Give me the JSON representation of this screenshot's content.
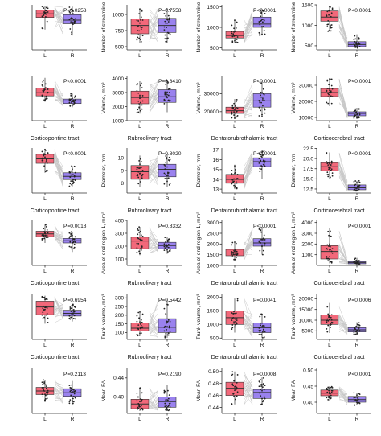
{
  "colors": {
    "L": "#f2687a",
    "R": "#9a82ee",
    "line": "#c8c8c8",
    "dot": "#222222",
    "axis": "#333333"
  },
  "chart_data": [
    {
      "type": "box",
      "title": "",
      "ylabel": "",
      "ylim": [
        0,
        1
      ],
      "yticks": [],
      "categories": [
        "L",
        "R"
      ],
      "boxes": [
        {
          "q1": 0.72,
          "median": 0.8,
          "q3": 0.88,
          "lo": 0.45,
          "hi": 0.98
        },
        {
          "q1": 0.58,
          "median": 0.66,
          "q3": 0.78,
          "lo": 0.32,
          "hi": 0.96
        }
      ],
      "pvalue": "P=0.0258"
    },
    {
      "type": "box",
      "title": "",
      "ylabel": "Number of streamline",
      "ylim": [
        450,
        1150
      ],
      "yticks": [
        "500",
        "750",
        "1000"
      ],
      "categories": [
        "L",
        "R"
      ],
      "boxes": [
        {
          "q1": 700,
          "median": 830,
          "q3": 930,
          "lo": 560,
          "hi": 1100
        },
        {
          "q1": 720,
          "median": 830,
          "q3": 940,
          "lo": 560,
          "hi": 1100
        }
      ],
      "pvalue": "P=0.7558"
    },
    {
      "type": "box",
      "title": "",
      "ylabel": "Number of streamline",
      "ylim": [
        450,
        1550
      ],
      "yticks": [
        "500",
        "1000",
        "1500"
      ],
      "categories": [
        "L",
        "R"
      ],
      "boxes": [
        {
          "q1": 740,
          "median": 800,
          "q3": 900,
          "lo": 620,
          "hi": 1200
        },
        {
          "q1": 1000,
          "median": 1080,
          "q3": 1250,
          "lo": 800,
          "hi": 1450
        }
      ],
      "pvalue": "P<0.0001"
    },
    {
      "type": "box",
      "title": "",
      "ylabel": "Number of streamline",
      "ylim": [
        400,
        1500
      ],
      "yticks": [
        "500",
        "1000",
        "1500"
      ],
      "categories": [
        "L",
        "R"
      ],
      "boxes": [
        {
          "q1": 1100,
          "median": 1200,
          "q3": 1350,
          "lo": 850,
          "hi": 1480
        },
        {
          "q1": 480,
          "median": 530,
          "q3": 600,
          "lo": 440,
          "hi": 780
        }
      ],
      "pvalue": "P<0.0001"
    },
    {
      "type": "box",
      "title": "Corticopontine tract",
      "ylabel": "",
      "ylim": [
        0,
        1
      ],
      "yticks": [],
      "categories": [
        "L",
        "R"
      ],
      "boxes": [
        {
          "q1": 0.55,
          "median": 0.62,
          "q3": 0.72,
          "lo": 0.42,
          "hi": 0.95
        },
        {
          "q1": 0.38,
          "median": 0.44,
          "q3": 0.48,
          "lo": 0.3,
          "hi": 0.6
        }
      ],
      "pvalue": "P<0.0001"
    },
    {
      "type": "box",
      "title": "Rubroolivary tract",
      "ylabel": "Volume, mm³",
      "ylim": [
        1000,
        4200
      ],
      "yticks": [
        "1000",
        "2000",
        "3000",
        "4000"
      ],
      "categories": [
        "L",
        "R"
      ],
      "boxes": [
        {
          "q1": 2200,
          "median": 2650,
          "q3": 3100,
          "lo": 1500,
          "hi": 3800
        },
        {
          "q1": 2300,
          "median": 2700,
          "q3": 3200,
          "lo": 1600,
          "hi": 3900
        }
      ],
      "pvalue": "P=0.8410"
    },
    {
      "type": "box",
      "title": "Dentatorubrothalamic tract",
      "ylabel": "Volume, mm³",
      "ylim": [
        15000,
        40000
      ],
      "yticks": [
        "20000",
        "30000"
      ],
      "categories": [
        "L",
        "R"
      ],
      "boxes": [
        {
          "q1": 19000,
          "median": 20500,
          "q3": 22500,
          "lo": 16000,
          "hi": 27000
        },
        {
          "q1": 22500,
          "median": 26000,
          "q3": 30000,
          "lo": 17000,
          "hi": 37000
        }
      ],
      "pvalue": "P<0.0001"
    },
    {
      "type": "box",
      "title": "Corticocerebral tract",
      "ylabel": "Volume, mm³",
      "ylim": [
        8000,
        36000
      ],
      "yticks": [
        "10000",
        "20000",
        "30000"
      ],
      "categories": [
        "L",
        "R"
      ],
      "boxes": [
        {
          "q1": 23000,
          "median": 25500,
          "q3": 28000,
          "lo": 17000,
          "hi": 34000
        },
        {
          "q1": 11000,
          "median": 12500,
          "q3": 13500,
          "lo": 9500,
          "hi": 16000
        }
      ],
      "pvalue": "P<0.0001"
    },
    {
      "type": "box",
      "title": "Corticopontine tract",
      "ylabel": "",
      "ylim": [
        0,
        1
      ],
      "yticks": [],
      "categories": [
        "L",
        "R"
      ],
      "boxes": [
        {
          "q1": 0.66,
          "median": 0.76,
          "q3": 0.86,
          "lo": 0.45,
          "hi": 0.97
        },
        {
          "q1": 0.3,
          "median": 0.37,
          "q3": 0.45,
          "lo": 0.15,
          "hi": 0.6
        }
      ],
      "pvalue": "P<0.0001"
    },
    {
      "type": "box",
      "title": "Rubroolivary tract",
      "ylabel": "Diameter, mm",
      "ylim": [
        7.2,
        10.8
      ],
      "yticks": [
        "8",
        "9",
        "10"
      ],
      "categories": [
        "L",
        "R"
      ],
      "boxes": [
        {
          "q1": 8.3,
          "median": 8.9,
          "q3": 9.4,
          "lo": 7.7,
          "hi": 10.2
        },
        {
          "q1": 8.5,
          "median": 9.1,
          "q3": 9.5,
          "lo": 7.7,
          "hi": 10.3
        }
      ],
      "pvalue": "P=0.8020"
    },
    {
      "type": "box",
      "title": "Dentatorubrothalamic tract",
      "ylabel": "Diameter, mm",
      "ylim": [
        12.6,
        17.2
      ],
      "yticks": [
        "13",
        "14",
        "15",
        "16",
        "17"
      ],
      "categories": [
        "L",
        "R"
      ],
      "boxes": [
        {
          "q1": 13.6,
          "median": 14.0,
          "q3": 14.5,
          "lo": 13.0,
          "hi": 15.5
        },
        {
          "q1": 15.3,
          "median": 15.8,
          "q3": 16.2,
          "lo": 14.0,
          "hi": 17.0
        }
      ],
      "pvalue": "P<0.0001"
    },
    {
      "type": "box",
      "title": "Corticocerebral tract",
      "ylabel": "Diameter, mm",
      "ylim": [
        11.5,
        22.6
      ],
      "yticks": [
        "12.5",
        "15.0",
        "17.5",
        "20.0",
        "22.5"
      ],
      "categories": [
        "L",
        "R"
      ],
      "boxes": [
        {
          "q1": 17.0,
          "median": 18.0,
          "q3": 19.0,
          "lo": 15.0,
          "hi": 21.5
        },
        {
          "q1": 12.3,
          "median": 12.8,
          "q3": 13.5,
          "lo": 12.0,
          "hi": 14.5
        }
      ],
      "pvalue": "P<0.0001"
    },
    {
      "type": "box",
      "title": "Corticopontine tract",
      "ylabel": "",
      "ylim": [
        0,
        1
      ],
      "yticks": [],
      "categories": [
        "L",
        "R"
      ],
      "boxes": [
        {
          "q1": 0.64,
          "median": 0.7,
          "q3": 0.76,
          "lo": 0.5,
          "hi": 0.92
        },
        {
          "q1": 0.5,
          "median": 0.55,
          "q3": 0.6,
          "lo": 0.3,
          "hi": 0.75
        }
      ],
      "pvalue": "P=0.0018"
    },
    {
      "type": "box",
      "title": "Rubroolivary tract",
      "ylabel": "Area of end region 1, mm²",
      "ylim": [
        50,
        400
      ],
      "yticks": [
        "100",
        "200",
        "300",
        "400"
      ],
      "categories": [
        "L",
        "R"
      ],
      "boxes": [
        {
          "q1": 180,
          "median": 240,
          "q3": 270,
          "lo": 130,
          "hi": 350
        },
        {
          "q1": 180,
          "median": 205,
          "q3": 230,
          "lo": 140,
          "hi": 270
        }
      ],
      "pvalue": "P=0.8332"
    },
    {
      "type": "box",
      "title": "Dentatorubrothalamic tract",
      "ylabel": "Area of end region 1, mm²",
      "ylim": [
        1000,
        3100
      ],
      "yticks": [
        "1000",
        "1500",
        "2000",
        "2500",
        "3000"
      ],
      "categories": [
        "L",
        "R"
      ],
      "boxes": [
        {
          "q1": 1450,
          "median": 1580,
          "q3": 1750,
          "lo": 1200,
          "hi": 2100
        },
        {
          "q1": 1900,
          "median": 2050,
          "q3": 2250,
          "lo": 1500,
          "hi": 2800
        }
      ],
      "pvalue": "P<0.0001"
    },
    {
      "type": "box",
      "title": "Corticocerebral tract",
      "ylabel": "Area of end region 1, mm²",
      "ylim": [
        0,
        4200
      ],
      "yticks": [
        "1000",
        "2000",
        "3000",
        "4000"
      ],
      "categories": [
        "L",
        "R"
      ],
      "boxes": [
        {
          "q1": 600,
          "median": 1300,
          "q3": 1850,
          "lo": 200,
          "hi": 3500
        },
        {
          "q1": 150,
          "median": 250,
          "q3": 350,
          "lo": 80,
          "hi": 700
        }
      ],
      "pvalue": "P<0.0001"
    },
    {
      "type": "box",
      "title": "Corticopontine tract",
      "ylabel": "",
      "ylim": [
        0,
        1
      ],
      "yticks": [],
      "categories": [
        "L",
        "R"
      ],
      "boxes": [
        {
          "q1": 0.55,
          "median": 0.72,
          "q3": 0.85,
          "lo": 0.35,
          "hi": 0.97
        },
        {
          "q1": 0.52,
          "median": 0.58,
          "q3": 0.65,
          "lo": 0.4,
          "hi": 0.78
        }
      ],
      "pvalue": "P=0.6954"
    },
    {
      "type": "box",
      "title": "Rubroolivary tract",
      "ylabel": "Trunk volume, mm³",
      "ylim": [
        60,
        320
      ],
      "yticks": [
        "100",
        "150",
        "200",
        "250",
        "300"
      ],
      "categories": [
        "L",
        "R"
      ],
      "boxes": [
        {
          "q1": 110,
          "median": 125,
          "q3": 155,
          "lo": 80,
          "hi": 220
        },
        {
          "q1": 100,
          "median": 130,
          "q3": 180,
          "lo": 70,
          "hi": 290
        }
      ],
      "pvalue": "P=0.5442"
    },
    {
      "type": "box",
      "title": "Dentatorubrothalamic tract",
      "ylabel": "Trunk volume, mm³",
      "ylim": [
        450,
        2100
      ],
      "yticks": [
        "500",
        "1000",
        "1500",
        "2000"
      ],
      "categories": [
        "L",
        "R"
      ],
      "boxes": [
        {
          "q1": 1000,
          "median": 1250,
          "q3": 1500,
          "lo": 700,
          "hi": 1950
        },
        {
          "q1": 700,
          "median": 880,
          "q3": 1050,
          "lo": 500,
          "hi": 1400
        }
      ],
      "pvalue": "P=0.0041"
    },
    {
      "type": "box",
      "title": "Corticocerebral tract",
      "ylabel": "Trunk volume, mm³",
      "ylim": [
        1000,
        22000
      ],
      "yticks": [
        "5000",
        "10000",
        "15000",
        "20000"
      ],
      "categories": [
        "L",
        "R"
      ],
      "boxes": [
        {
          "q1": 8000,
          "median": 10000,
          "q3": 12500,
          "lo": 4000,
          "hi": 18000
        },
        {
          "q1": 4500,
          "median": 5500,
          "q3": 6500,
          "lo": 3000,
          "hi": 9000
        }
      ],
      "pvalue": "P=0.0006"
    },
    {
      "type": "box",
      "title": "",
      "ylabel": "",
      "ylim": [
        0,
        1
      ],
      "yticks": [],
      "categories": [
        "L",
        "R"
      ],
      "boxes": [
        {
          "q1": 0.42,
          "median": 0.5,
          "q3": 0.58,
          "lo": 0.25,
          "hi": 0.75
        },
        {
          "q1": 0.38,
          "median": 0.46,
          "q3": 0.55,
          "lo": 0.2,
          "hi": 0.72
        }
      ],
      "pvalue": "P=0.2113"
    },
    {
      "type": "box",
      "title": "",
      "ylabel": "Mean FA",
      "ylim": [
        0.365,
        0.46
      ],
      "yticks": [
        "0.40",
        "0.44"
      ],
      "categories": [
        "L",
        "R"
      ],
      "boxes": [
        {
          "q1": 0.375,
          "median": 0.385,
          "q3": 0.395,
          "lo": 0.37,
          "hi": 0.42
        },
        {
          "q1": 0.378,
          "median": 0.39,
          "q3": 0.4,
          "lo": 0.37,
          "hi": 0.425
        }
      ],
      "pvalue": "P=0.2190"
    },
    {
      "type": "box",
      "title": "",
      "ylabel": "Mean FA",
      "ylim": [
        0.43,
        0.505
      ],
      "yticks": [
        "0.44",
        "0.46",
        "0.48",
        "0.50"
      ],
      "categories": [
        "L",
        "R"
      ],
      "boxes": [
        {
          "q1": 0.46,
          "median": 0.472,
          "q3": 0.482,
          "lo": 0.445,
          "hi": 0.5
        },
        {
          "q1": 0.455,
          "median": 0.465,
          "q3": 0.47,
          "lo": 0.445,
          "hi": 0.49
        }
      ],
      "pvalue": "P=0.0008"
    },
    {
      "type": "box",
      "title": "",
      "ylabel": "Mean FA",
      "ylim": [
        0.365,
        0.505
      ],
      "yticks": [
        "0.40",
        "0.45",
        "0.50"
      ],
      "categories": [
        "L",
        "R"
      ],
      "boxes": [
        {
          "q1": 0.42,
          "median": 0.428,
          "q3": 0.438,
          "lo": 0.405,
          "hi": 0.45
        },
        {
          "q1": 0.4,
          "median": 0.408,
          "q3": 0.418,
          "lo": 0.39,
          "hi": 0.43
        }
      ],
      "pvalue": "P<0.0001"
    }
  ]
}
